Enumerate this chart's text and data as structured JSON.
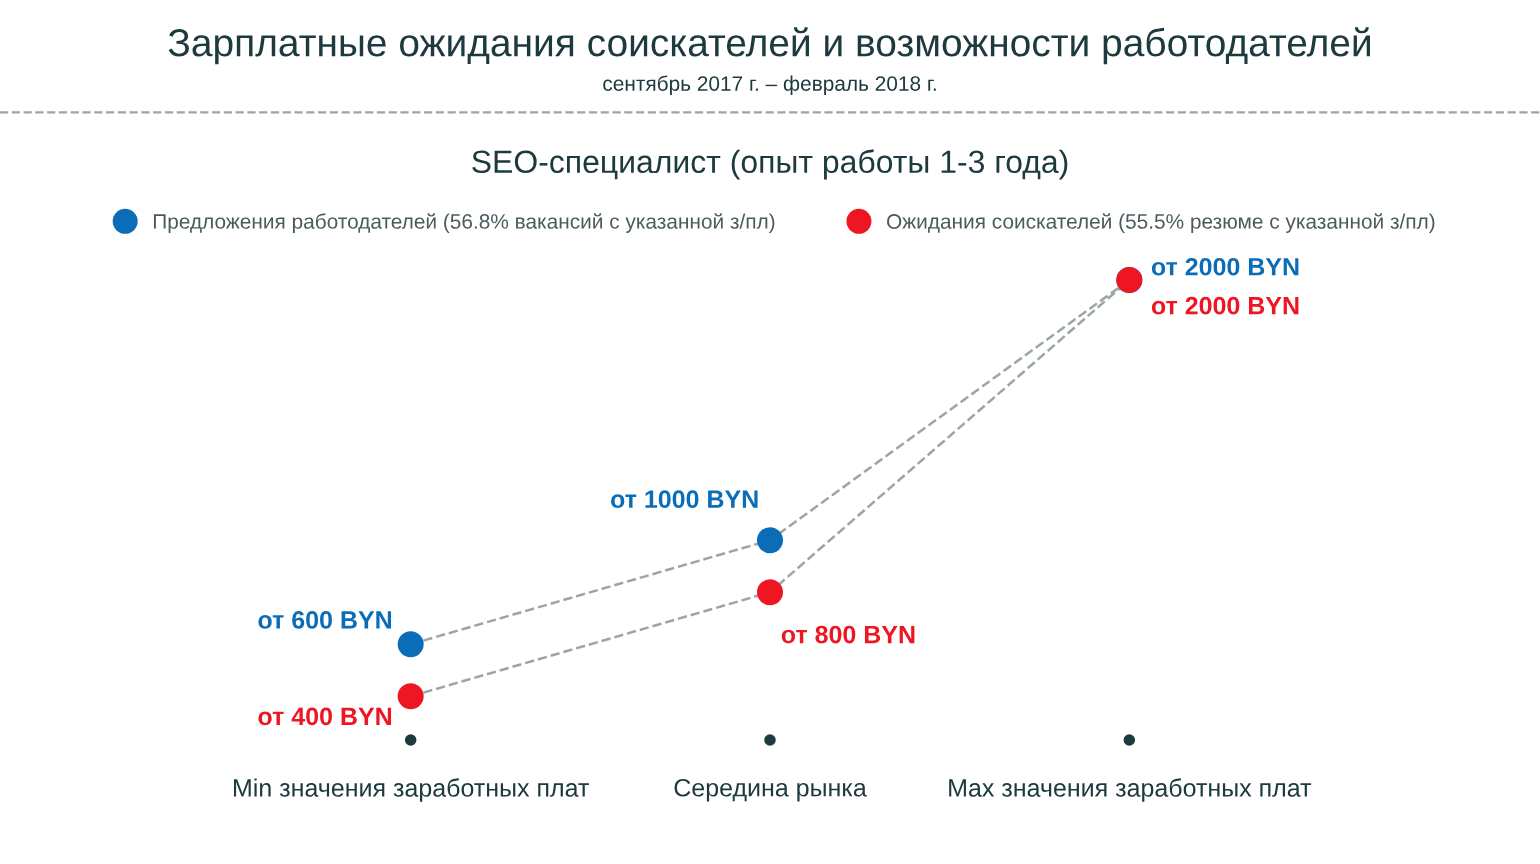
{
  "chart_data": {
    "type": "line",
    "title": "Зарплатные ожидания соискателей и возможности работодателей",
    "subtitle": "сентябрь 2017 г. – февраль 2018 г.",
    "annotations": [
      "SEO-специалист (опыт работы 1-3 года)"
    ],
    "categories": [
      "Min значения заработных плат",
      "Середина рынка",
      "Max значения заработных плат"
    ],
    "series": [
      {
        "name": "Предложения работодателей (56.8% вакансий с указанной з/пл)",
        "color": "#0b6cb8",
        "values": [
          600,
          1000,
          2000
        ],
        "value_labels": [
          "от 600 BYN",
          "от 1000 BYN",
          "от 2000 BYN"
        ]
      },
      {
        "name": "Ожидания соискателей (55.5% резюме с указанной з/пл)",
        "color": "#ee1622",
        "values": [
          400,
          800,
          2000
        ],
        "value_labels": [
          "от 400 BYN",
          "от 800 BYN",
          "от 2000 BYN"
        ]
      }
    ],
    "marker": "circle",
    "line_style": "dashed",
    "legend": "top",
    "grid": false
  }
}
